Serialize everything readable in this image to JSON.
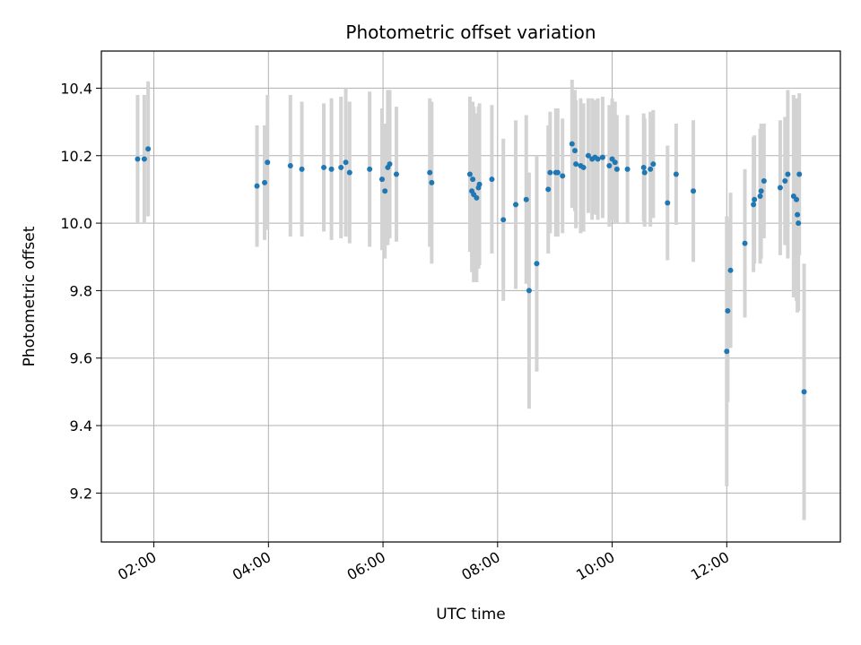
{
  "chart_data": {
    "type": "scatter",
    "title": "Photometric offset variation",
    "xlabel": "UTC time",
    "ylabel": "Photometric offset",
    "x_ticks": [
      "02:00",
      "04:00",
      "06:00",
      "08:00",
      "10:00",
      "12:00"
    ],
    "x_tick_hours": [
      2,
      4,
      6,
      8,
      10,
      12
    ],
    "y_ticks": [
      "9.2",
      "9.4",
      "9.6",
      "9.8",
      "10.0",
      "10.2",
      "10.4"
    ],
    "y_tick_values": [
      9.2,
      9.4,
      9.6,
      9.8,
      10.0,
      10.2,
      10.4
    ],
    "xlim": [
      "01:05",
      "13:59"
    ],
    "ylim": [
      9.055,
      10.51
    ],
    "grid": true,
    "point_color": "#1f77b4",
    "errorbar_color": "#d3d3d3",
    "series": [
      {
        "x": [
          "01:43",
          "01:50",
          "01:54",
          "03:48",
          "03:56",
          "03:59",
          "04:23",
          "04:35",
          "04:58",
          "05:06",
          "05:16",
          "05:21",
          "05:25",
          "05:46",
          "05:59",
          "06:02",
          "06:05",
          "06:07",
          "06:14",
          "06:49",
          "06:51",
          "07:31",
          "07:33",
          "07:34",
          "07:35",
          "07:38",
          "07:40",
          "07:41",
          "07:54",
          "08:06",
          "08:19",
          "08:30",
          "08:33",
          "08:41",
          "08:53",
          "08:55",
          "09:01",
          "09:03",
          "09:08",
          "09:18",
          "09:21",
          "09:22",
          "09:27",
          "09:30",
          "09:35",
          "09:39",
          "09:42",
          "09:45",
          "09:50",
          "09:57",
          "10:00",
          "10:03",
          "10:05",
          "10:16",
          "10:33",
          "10:34",
          "10:40",
          "10:43",
          "10:58",
          "11:07",
          "11:25",
          "12:00",
          "12:01",
          "12:04",
          "12:19",
          "12:28",
          "12:29",
          "12:35",
          "12:36",
          "12:39",
          "12:56",
          "13:01",
          "13:04",
          "13:10",
          "13:13",
          "13:14",
          "13:15",
          "13:16",
          "13:21"
        ],
        "y": [
          10.19,
          10.19,
          10.22,
          10.11,
          10.12,
          10.18,
          10.17,
          10.16,
          10.165,
          10.16,
          10.165,
          10.18,
          10.15,
          10.16,
          10.13,
          10.095,
          10.165,
          10.175,
          10.145,
          10.15,
          10.12,
          10.145,
          10.095,
          10.13,
          10.085,
          10.075,
          10.105,
          10.115,
          10.13,
          10.01,
          10.055,
          10.07,
          9.8,
          9.88,
          10.1,
          10.15,
          10.15,
          10.15,
          10.14,
          10.235,
          10.215,
          10.175,
          10.17,
          10.165,
          10.2,
          10.19,
          10.195,
          10.19,
          10.195,
          10.17,
          10.19,
          10.18,
          10.16,
          10.16,
          10.165,
          10.15,
          10.16,
          10.175,
          10.06,
          10.145,
          10.095,
          9.62,
          9.74,
          9.86,
          9.94,
          10.055,
          10.07,
          10.08,
          10.095,
          10.125,
          10.105,
          10.125,
          10.145,
          10.08,
          10.07,
          10.025,
          10.0,
          10.145,
          9.5
        ],
        "yerr": [
          0.19,
          0.19,
          0.2,
          0.18,
          0.17,
          0.2,
          0.21,
          0.2,
          0.19,
          0.21,
          0.21,
          0.22,
          0.21,
          0.23,
          0.21,
          0.2,
          0.23,
          0.22,
          0.2,
          0.22,
          0.24,
          0.23,
          0.24,
          0.23,
          0.26,
          0.25,
          0.24,
          0.24,
          0.22,
          0.24,
          0.25,
          0.25,
          0.35,
          0.32,
          0.19,
          0.18,
          0.19,
          0.19,
          0.17,
          0.19,
          0.18,
          0.19,
          0.2,
          0.19,
          0.17,
          0.18,
          0.17,
          0.18,
          0.18,
          0.18,
          0.18,
          0.18,
          0.16,
          0.16,
          0.16,
          0.16,
          0.17,
          0.16,
          0.17,
          0.15,
          0.21,
          0.4,
          0.27,
          0.23,
          0.22,
          0.2,
          0.19,
          0.2,
          0.2,
          0.17,
          0.2,
          0.19,
          0.25,
          0.3,
          0.3,
          0.29,
          0.26,
          0.24,
          0.38
        ]
      }
    ]
  }
}
